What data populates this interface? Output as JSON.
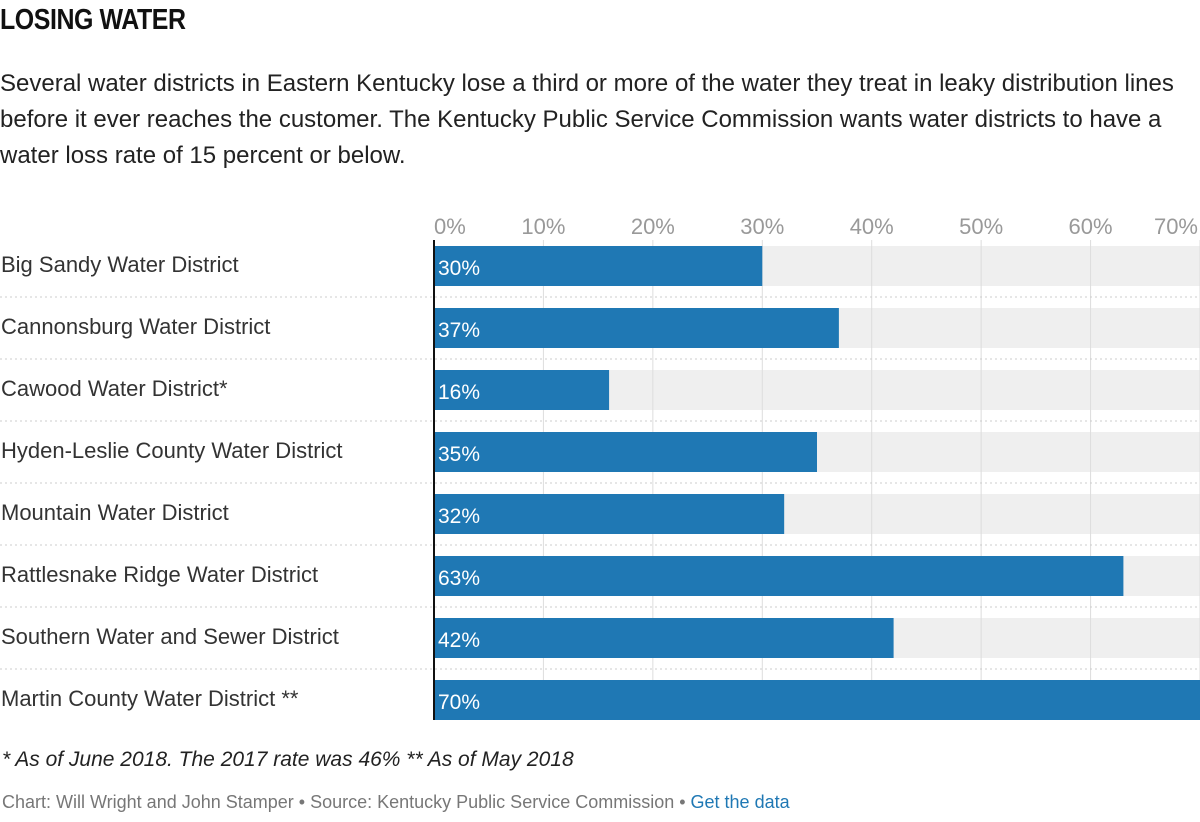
{
  "title": "LOSING WATER",
  "subtitle": "Several water districts in Eastern Kentucky lose a third or more of the water they treat in leaky distribution lines before it ever reaches the customer. The Kentucky Public Service Commission wants water districts to have a water loss rate of 15 percent or below.",
  "footnote": "* As of June 2018. The 2017 rate was 46%  ** As of May 2018",
  "credits": {
    "text": "Chart: Will Wright and John Stamper • Source: Kentucky Public Service Commission • ",
    "link": "Get the data"
  },
  "colors": {
    "bar": "#1f78b4",
    "track": "#efefef",
    "grid": "#dddddd",
    "tick": "#999999",
    "label": "#333333",
    "value": "#ffffff"
  },
  "chart_data": {
    "type": "bar",
    "orientation": "horizontal",
    "categories": [
      "Big Sandy Water District",
      "Cannonsburg Water District",
      "Cawood Water District*",
      "Hyden-Leslie County Water District",
      "Mountain Water District",
      "Rattlesnake Ridge Water District",
      "Southern Water and Sewer District",
      "Martin County Water District **"
    ],
    "values": [
      30,
      37,
      16,
      35,
      32,
      63,
      42,
      70
    ],
    "value_labels": [
      "30%",
      "37%",
      "16%",
      "35%",
      "32%",
      "63%",
      "42%",
      "70%"
    ],
    "xlim": [
      0,
      70
    ],
    "xticks": [
      0,
      10,
      20,
      30,
      40,
      50,
      60,
      70
    ],
    "xtick_labels": [
      "0%",
      "10%",
      "20%",
      "30%",
      "40%",
      "50%",
      "60%",
      "70%"
    ],
    "axis_position": "top",
    "grid": true
  }
}
